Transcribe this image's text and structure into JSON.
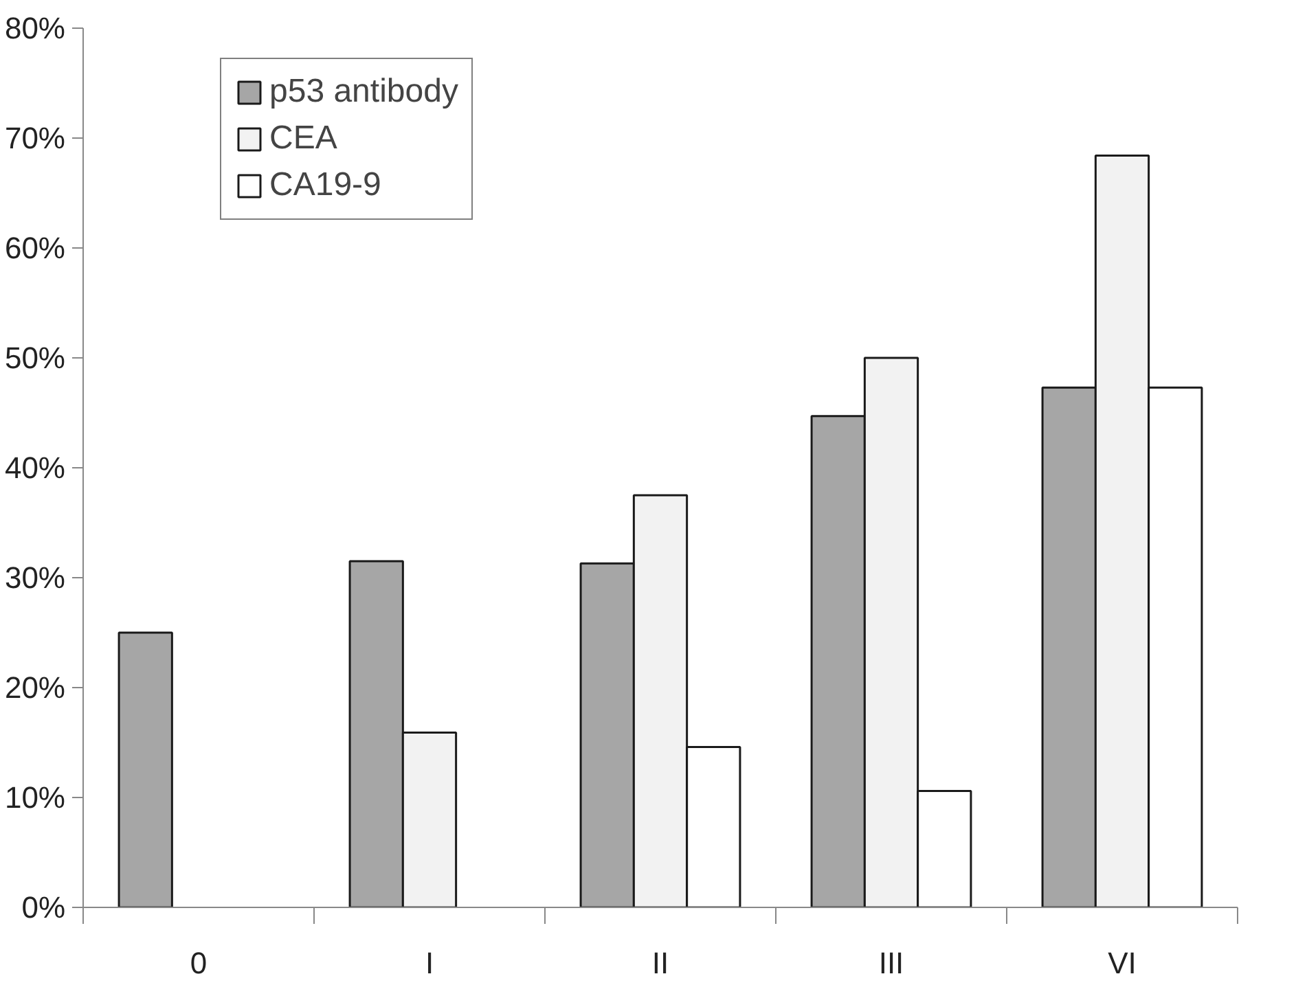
{
  "chart_data": {
    "type": "bar",
    "categories": [
      "0",
      "I",
      "II",
      "III",
      "VI"
    ],
    "series": [
      {
        "name": "p53 antibody",
        "color": "#a6a6a6",
        "values": [
          25,
          31.5,
          31.3,
          44.7,
          47.3
        ]
      },
      {
        "name": "CEA",
        "color": "#f2f2f2",
        "values": [
          null,
          15.9,
          37.5,
          50,
          68.4
        ]
      },
      {
        "name": "CA19-9",
        "color": "#ffffff",
        "values": [
          null,
          null,
          14.6,
          10.6,
          47.3
        ]
      }
    ],
    "ylim": [
      0,
      80
    ],
    "yticks": [
      {
        "value": 0,
        "label": "0%"
      },
      {
        "value": 10,
        "label": "10%"
      },
      {
        "value": 20,
        "label": "20%"
      },
      {
        "value": 30,
        "label": "30%"
      },
      {
        "value": 40,
        "label": "40%"
      },
      {
        "value": 50,
        "label": "50%"
      },
      {
        "value": 60,
        "label": "60%"
      },
      {
        "value": 70,
        "label": "70%"
      },
      {
        "value": 80,
        "label": "80%"
      }
    ],
    "grid": false,
    "legend": "top left"
  }
}
